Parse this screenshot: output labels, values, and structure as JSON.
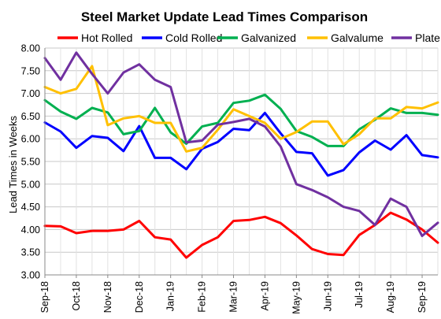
{
  "chart_data": {
    "type": "line",
    "title": "Steel Market Update Lead Times Comparison",
    "xlabel": "",
    "ylabel": "Lead Times in Weeks",
    "ylim": [
      3.0,
      8.0
    ],
    "y_ticks": [
      "3.00",
      "3.50",
      "4.00",
      "4.50",
      "5.00",
      "5.50",
      "6.00",
      "6.50",
      "7.00",
      "7.50",
      "8.00"
    ],
    "x_tick_labels": [
      "Sep-18",
      "Oct-18",
      "Nov-18",
      "Dec-18",
      "Jan-19",
      "Feb-19",
      "Mar-19",
      "Apr-19",
      "May-19",
      "Jun-19",
      "Jul-19",
      "Aug-19",
      "Sep-19"
    ],
    "points_per_month": 2,
    "grid": true,
    "legend_position": "top",
    "series": [
      {
        "name": "Hot Rolled",
        "color": "#ff0000",
        "values": [
          4.08,
          4.07,
          3.92,
          3.97,
          3.97,
          4.0,
          4.19,
          3.83,
          3.78,
          3.38,
          3.66,
          3.83,
          4.19,
          4.21,
          4.28,
          4.14,
          3.87,
          3.57,
          3.46,
          3.44,
          3.88,
          4.1,
          4.37,
          4.22,
          4.0,
          3.71
        ]
      },
      {
        "name": "Cold Rolled",
        "color": "#0000ff",
        "values": [
          6.36,
          6.16,
          5.8,
          6.06,
          6.02,
          5.73,
          6.28,
          5.58,
          5.58,
          5.33,
          5.78,
          5.93,
          6.22,
          6.19,
          6.57,
          6.12,
          5.71,
          5.68,
          5.19,
          5.31,
          5.7,
          5.96,
          5.76,
          6.08,
          5.64,
          5.59
        ]
      },
      {
        "name": "Galvanized",
        "color": "#00b050",
        "values": [
          6.85,
          6.6,
          6.44,
          6.68,
          6.58,
          6.1,
          6.17,
          6.68,
          6.14,
          5.89,
          6.27,
          6.35,
          6.79,
          6.84,
          6.97,
          6.66,
          6.17,
          6.04,
          5.84,
          5.84,
          6.21,
          6.42,
          6.67,
          6.57,
          6.57,
          6.53
        ]
      },
      {
        "name": "Galvalume",
        "color": "#ffc000",
        "values": [
          7.14,
          7.0,
          7.1,
          7.6,
          6.3,
          6.45,
          6.5,
          6.35,
          6.35,
          5.72,
          5.8,
          6.2,
          6.65,
          6.5,
          6.35,
          6.0,
          6.15,
          6.38,
          6.38,
          5.88,
          6.1,
          6.45,
          6.45,
          6.7,
          6.67,
          6.8
        ]
      },
      {
        "name": "Plate",
        "color": "#7030a0",
        "values": [
          7.78,
          7.3,
          7.9,
          7.43,
          7.0,
          7.46,
          7.64,
          7.3,
          7.14,
          5.92,
          5.96,
          6.31,
          6.37,
          6.44,
          6.27,
          5.83,
          5.0,
          4.87,
          4.71,
          4.5,
          4.41,
          4.1,
          4.68,
          4.5,
          3.86,
          4.15
        ]
      }
    ]
  }
}
